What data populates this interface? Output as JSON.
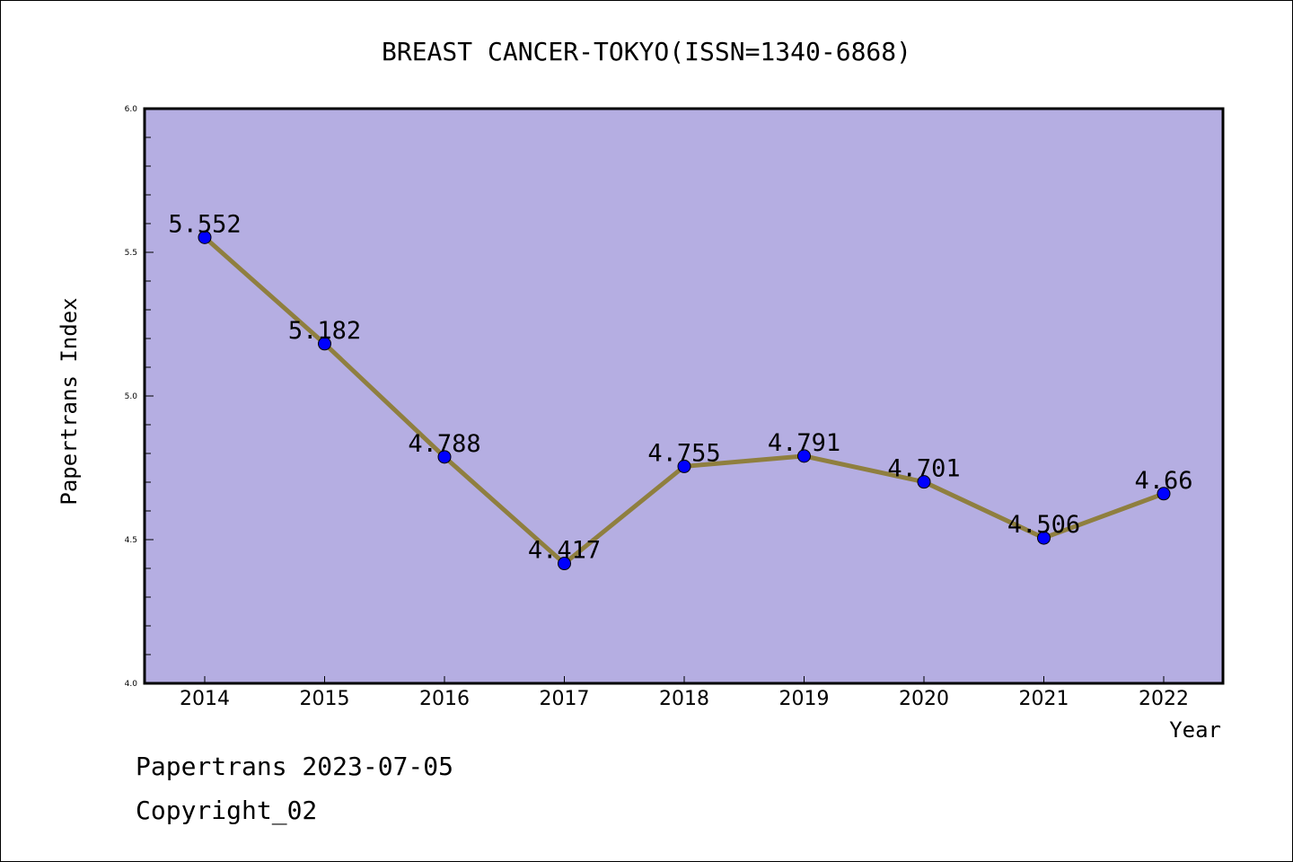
{
  "chart_data": {
    "type": "line",
    "title": "BREAST CANCER-TOKYO(ISSN=1340-6868)",
    "xlabel": "Year",
    "ylabel": "Papertrans Index",
    "x": [
      "2014",
      "2015",
      "2016",
      "2017",
      "2018",
      "2019",
      "2020",
      "2021",
      "2022"
    ],
    "series": [
      {
        "values": [
          5.552,
          5.182,
          4.788,
          4.417,
          4.755,
          4.791,
          4.701,
          4.506,
          4.66
        ],
        "labels": [
          "5.552",
          "5.182",
          "4.788",
          "4.417",
          "4.755",
          "4.791",
          "4.701",
          "4.506",
          "4.66"
        ]
      }
    ],
    "ylim": [
      4.0,
      6.0
    ],
    "yticks": [
      "4.0",
      "4.5",
      "5.0",
      "5.5",
      "6.0"
    ],
    "grid": false,
    "colors": {
      "plot_background": "#b5aee2",
      "line": "#8f7f3f",
      "marker": "#0000ff"
    }
  },
  "footer": {
    "line1": "Papertrans 2023-07-05",
    "line2": "Copyright_02"
  }
}
